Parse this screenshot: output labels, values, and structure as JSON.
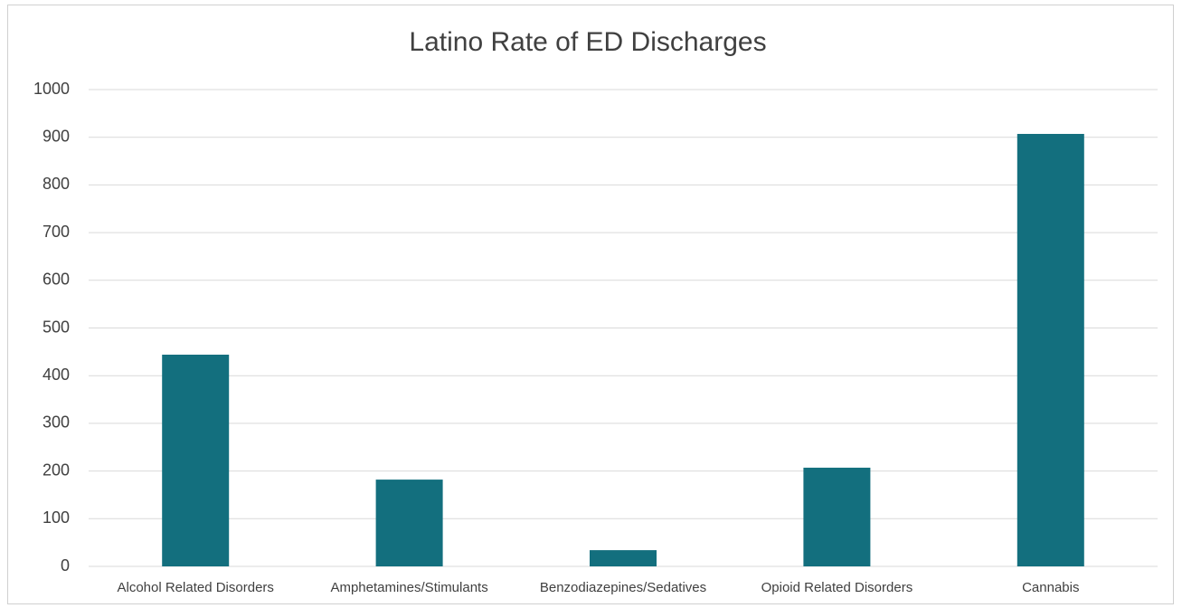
{
  "chart_data": {
    "type": "bar",
    "title": "Latino Rate of ED Discharges",
    "categories": [
      "Alcohol Related Disorders",
      "Amphetamines/Stimulants",
      "Benzodiazepines/Sedatives",
      "Opioid Related Disorders",
      "Cannabis"
    ],
    "values": [
      444,
      182,
      34,
      207,
      907
    ],
    "color": "#136f7e",
    "ylim": [
      0,
      1000
    ],
    "yticks": [
      0,
      100,
      200,
      300,
      400,
      500,
      600,
      700,
      800,
      900,
      1000
    ],
    "grid": true
  }
}
